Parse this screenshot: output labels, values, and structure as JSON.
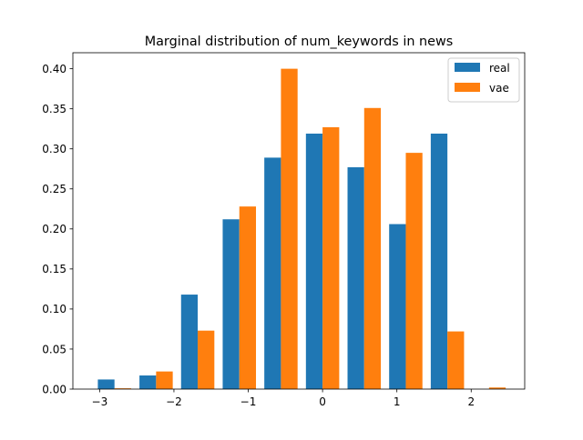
{
  "chart_data": {
    "type": "bar",
    "title": "Marginal distribution of num_keywords in news",
    "xlabel": "",
    "ylabel": "",
    "xlim": [
      -3.36,
      2.72
    ],
    "ylim": [
      0,
      0.42
    ],
    "xticks": [
      -3,
      -2,
      -1,
      0,
      1,
      2
    ],
    "xtick_labels": [
      "−3",
      "−2",
      "−1",
      "0",
      "1",
      "2"
    ],
    "yticks": [
      0,
      0.05,
      0.1,
      0.15,
      0.2,
      0.25,
      0.3,
      0.35,
      0.4
    ],
    "ytick_labels": [
      "0.00",
      "0.05",
      "0.10",
      "0.15",
      "0.20",
      "0.25",
      "0.30",
      "0.35",
      "0.40"
    ],
    "bin_edges": [
      -3.08,
      -2.52,
      -1.96,
      -1.4,
      -0.84,
      -0.28,
      0.28,
      0.84,
      1.4,
      1.96,
      2.52
    ],
    "grid": false,
    "legend_position": "top-right",
    "series": [
      {
        "name": "real",
        "color": "#1f77b4",
        "values": [
          0.012,
          0.017,
          0.118,
          0.212,
          0.289,
          0.319,
          0.277,
          0.206,
          0.319,
          0.0
        ]
      },
      {
        "name": "vae",
        "color": "#ff7f0e",
        "values": [
          0.001,
          0.022,
          0.073,
          0.228,
          0.4,
          0.327,
          0.351,
          0.295,
          0.072,
          0.002
        ]
      }
    ]
  }
}
